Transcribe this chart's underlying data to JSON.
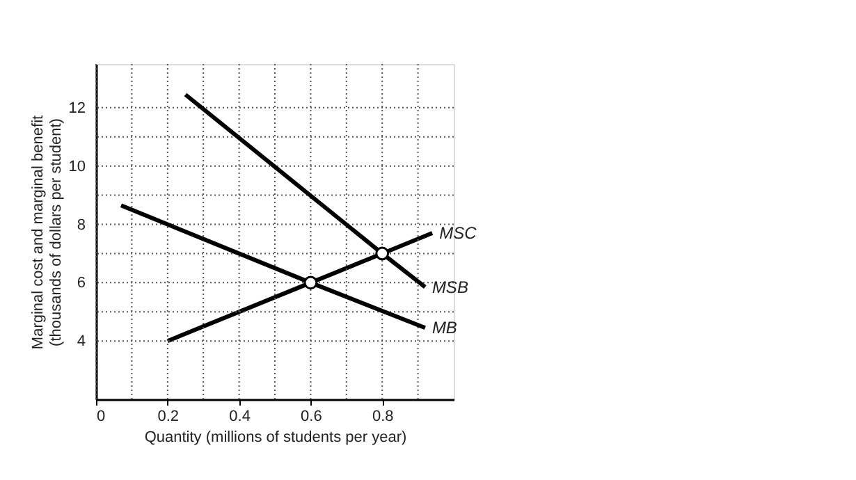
{
  "chart_data": {
    "type": "line",
    "xlabel": "Quantity (millions of students per year)",
    "ylabel": "Marginal cost and marginal benefit (thousands of dollars per student)",
    "xlim": [
      0,
      1
    ],
    "ylim": [
      2,
      13.5
    ],
    "xticks": [
      {
        "value": 0,
        "label": "0"
      },
      {
        "value": 0.1,
        "label": null
      },
      0.2,
      {
        "value": 0.3,
        "label": null
      },
      0.4,
      {
        "value": 0.5,
        "label": null
      },
      0.6,
      {
        "value": 0.7,
        "label": null
      },
      0.8,
      {
        "value": 0.9,
        "label": null
      }
    ],
    "yticks": [
      4,
      {
        "value": 5,
        "label": null
      },
      6,
      {
        "value": 7,
        "label": null
      },
      8,
      {
        "value": 9,
        "label": null
      },
      10,
      {
        "value": 11,
        "label": null
      },
      12
    ],
    "grid": true,
    "legend": false,
    "line_style": "solid",
    "marker": "none",
    "series": [
      {
        "name": "MSC",
        "color": "#000000",
        "x": [
          0.2,
          0.6,
          0.8,
          0.94
        ],
        "values": [
          4,
          6,
          7,
          7.7
        ]
      },
      {
        "name": "MSB",
        "color": "#000000",
        "x": [
          0.25,
          0.8,
          0.92
        ],
        "values": [
          12.45,
          7,
          5.85
        ]
      },
      {
        "name": "MB",
        "color": "#000000",
        "x": [
          0.07,
          0.6,
          0.92
        ],
        "values": [
          8.65,
          6,
          4.45
        ]
      },
      {
        "type": "scatter",
        "marker": "circle",
        "color": "#ffffff",
        "x": [
          0.6,
          0.8
        ],
        "values": [
          6,
          7
        ]
      }
    ]
  }
}
